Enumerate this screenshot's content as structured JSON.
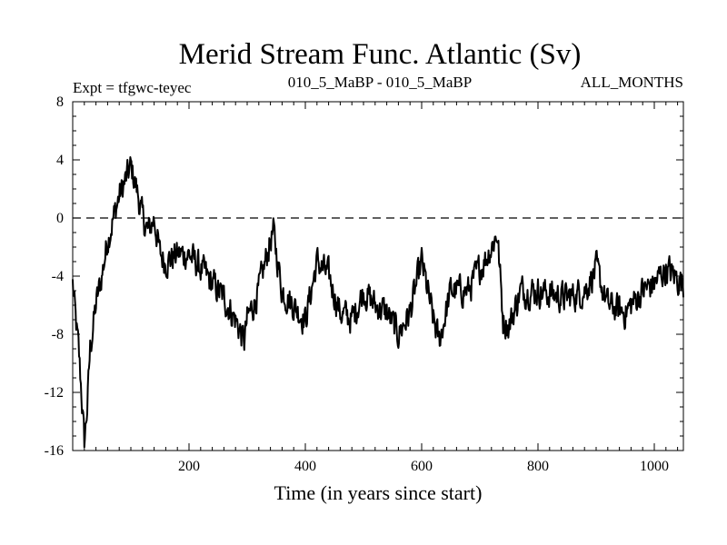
{
  "chart_data": {
    "type": "line",
    "title": "Merid Stream Func. Atlantic (Sv)",
    "subtitle_left": "Expt = tfgwc-teyec",
    "subtitle_center": "010_5_MaBP - 010_5_MaBP",
    "subtitle_right": "ALL_MONTHS",
    "xlabel": "Time (in years since start)",
    "ylabel": "",
    "xlim": [
      0,
      1050
    ],
    "ylim": [
      -16,
      8
    ],
    "xticks": [
      200,
      400,
      600,
      800,
      1000
    ],
    "yticks": [
      8,
      4,
      0,
      -4,
      -8,
      -12,
      -16
    ],
    "reference_line": 0,
    "series": [
      {
        "name": "Merid Stream Func. Atlantic",
        "x": [
          0,
          5,
          10,
          15,
          20,
          25,
          30,
          40,
          50,
          60,
          70,
          80,
          90,
          100,
          110,
          120,
          130,
          140,
          150,
          160,
          180,
          200,
          220,
          240,
          260,
          280,
          295,
          300,
          320,
          340,
          345,
          360,
          380,
          400,
          420,
          440,
          460,
          480,
          500,
          520,
          540,
          560,
          580,
          600,
          620,
          630,
          650,
          680,
          700,
          720,
          730,
          740,
          750,
          770,
          800,
          850,
          880,
          900,
          920,
          950,
          980,
          1000,
          1020,
          1050
        ],
        "y": [
          -4.5,
          -7,
          -9,
          -12,
          -15.5,
          -13,
          -9,
          -6,
          -4,
          -1.5,
          0,
          1.5,
          2.5,
          3.5,
          2,
          0,
          -1,
          0,
          -2.5,
          -3,
          -2.5,
          -2.5,
          -3.5,
          -4.5,
          -5.5,
          -7,
          -8.5,
          -7,
          -5,
          -1.5,
          -1,
          -5,
          -6,
          -7,
          -3,
          -4,
          -6.5,
          -7,
          -5,
          -6,
          -6.5,
          -8,
          -6.5,
          -3,
          -7,
          -8.5,
          -5,
          -5,
          -3.5,
          -2,
          -1,
          -7,
          -7.5,
          -5,
          -5,
          -5.5,
          -5,
          -3.5,
          -6,
          -6.5,
          -5,
          -4.5,
          -3.5,
          -4.5
        ]
      }
    ]
  }
}
